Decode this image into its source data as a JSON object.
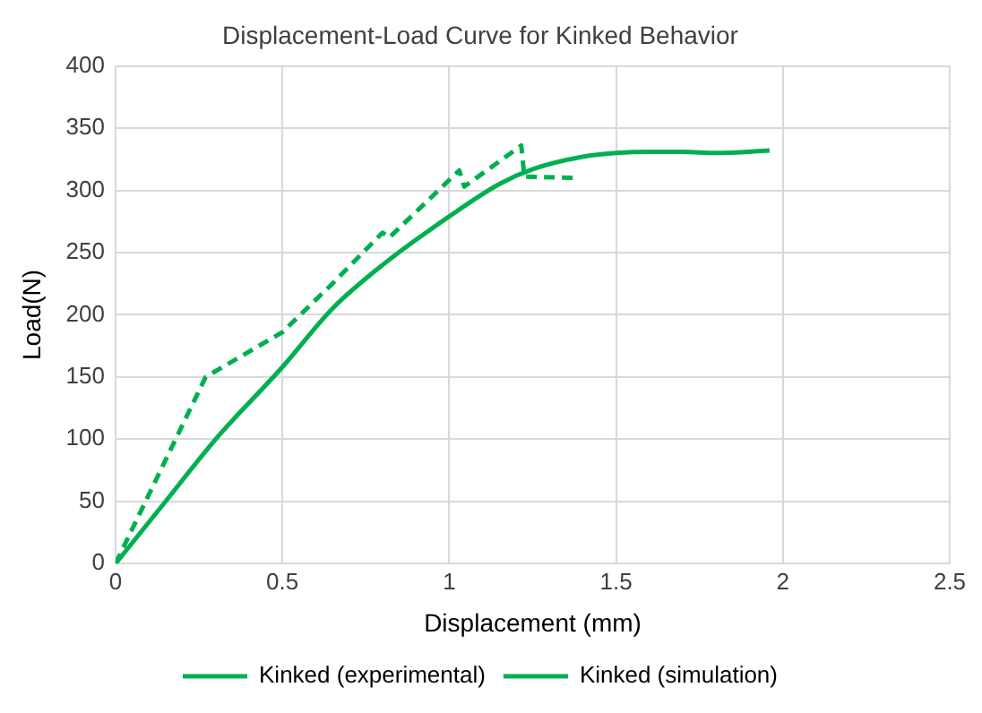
{
  "chart_data": {
    "type": "line",
    "title": "Displacement-Load Curve for Kinked Behavior",
    "xlabel": "Displacement (mm)",
    "ylabel": "Load(N)",
    "series": [
      {
        "name": "Kinked (experimental)",
        "color": "#00b050",
        "line_style": "solid",
        "x": [
          0,
          0.15,
          0.3,
          0.5,
          0.65,
          0.8,
          1.0,
          1.15,
          1.25,
          1.4,
          1.5,
          1.6,
          1.7,
          1.8,
          1.96
        ],
        "values": [
          0,
          50,
          100,
          158,
          205,
          240,
          279,
          305,
          317,
          327,
          330,
          331,
          331,
          330,
          332
        ]
      },
      {
        "name": "Kinked (simulation)",
        "color": "#00b050",
        "line_style": "dashed",
        "x": [
          0,
          0.27,
          0.5,
          0.65,
          0.8,
          0.82,
          1.03,
          1.045,
          1.216,
          1.225,
          1.37
        ],
        "values": [
          0,
          150,
          186,
          225,
          266,
          262,
          316,
          303,
          336,
          311,
          310
        ]
      }
    ],
    "xlim": [
      0,
      2.5
    ],
    "xticks": [
      0,
      0.5,
      1,
      1.5,
      2,
      2.5
    ],
    "ylim": [
      0,
      400
    ],
    "yticks": [
      0,
      50,
      100,
      150,
      200,
      250,
      300,
      350,
      400
    ],
    "grid": true,
    "legend": "bottom",
    "marker": "none"
  }
}
